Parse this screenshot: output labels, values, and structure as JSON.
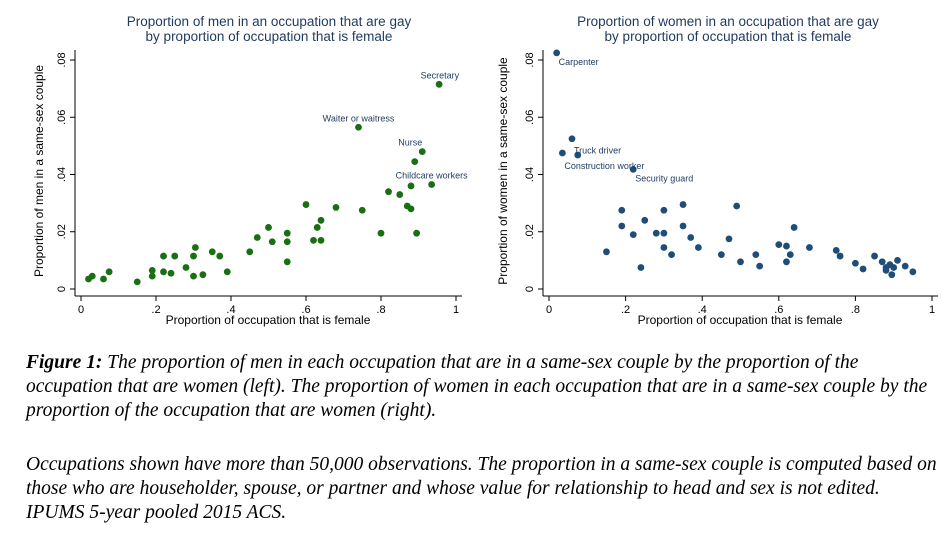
{
  "chart_data": [
    {
      "type": "scatter",
      "title": "Proportion of men in an occupation that are gay",
      "subtitle": "by proportion of occupation that is female",
      "xlabel": "Proportion of occupation that is female",
      "ylabel": "Proportion of men in a same-sex couple",
      "xlim": [
        0,
        1
      ],
      "ylim": [
        0,
        0.08
      ],
      "xticks": [
        "0",
        ".2",
        ".4",
        ".6",
        ".8",
        "1"
      ],
      "yticks": [
        "0",
        ".02",
        ".04",
        ".06",
        ".08"
      ],
      "grid": false,
      "color": "#1a6e14",
      "points": [
        [
          0.02,
          0.0035
        ],
        [
          0.03,
          0.0045
        ],
        [
          0.06,
          0.0035
        ],
        [
          0.075,
          0.006
        ],
        [
          0.15,
          0.0025
        ],
        [
          0.19,
          0.0065
        ],
        [
          0.19,
          0.0045
        ],
        [
          0.22,
          0.006
        ],
        [
          0.22,
          0.0115
        ],
        [
          0.24,
          0.0055
        ],
        [
          0.25,
          0.0115
        ],
        [
          0.28,
          0.0075
        ],
        [
          0.3,
          0.0115
        ],
        [
          0.3,
          0.0045
        ],
        [
          0.305,
          0.0145
        ],
        [
          0.325,
          0.005
        ],
        [
          0.35,
          0.013
        ],
        [
          0.37,
          0.0115
        ],
        [
          0.39,
          0.006
        ],
        [
          0.45,
          0.013
        ],
        [
          0.47,
          0.018
        ],
        [
          0.5,
          0.0215
        ],
        [
          0.51,
          0.0165
        ],
        [
          0.55,
          0.0195
        ],
        [
          0.55,
          0.0165
        ],
        [
          0.55,
          0.0095
        ],
        [
          0.6,
          0.0295
        ],
        [
          0.62,
          0.017
        ],
        [
          0.63,
          0.0215
        ],
        [
          0.64,
          0.017
        ],
        [
          0.64,
          0.024
        ],
        [
          0.68,
          0.0285
        ],
        [
          0.74,
          0.0565
        ],
        [
          0.75,
          0.0275
        ],
        [
          0.8,
          0.0195
        ],
        [
          0.82,
          0.034
        ],
        [
          0.85,
          0.033
        ],
        [
          0.87,
          0.029
        ],
        [
          0.88,
          0.028
        ],
        [
          0.88,
          0.036
        ],
        [
          0.89,
          0.0445
        ],
        [
          0.895,
          0.0195
        ],
        [
          0.91,
          0.048
        ],
        [
          0.935,
          0.0365
        ],
        [
          0.955,
          0.0715
        ]
      ],
      "annotations": [
        {
          "text": "Secretary",
          "x": 0.955,
          "y": 0.0715
        },
        {
          "text": "Waiter or waitress",
          "x": 0.74,
          "y": 0.0565
        },
        {
          "text": "Nurse",
          "x": 0.91,
          "y": 0.048
        },
        {
          "text": "Childcare workers",
          "x": 0.935,
          "y": 0.0365
        }
      ]
    },
    {
      "type": "scatter",
      "title": "Proportion of women in an occupation that are gay",
      "subtitle": "by proportion of occupation that is female",
      "xlabel": "Proportion of occupation that is female",
      "ylabel": "Proportion of women in a same-sex couple",
      "xlim": [
        0,
        1
      ],
      "ylim": [
        0,
        0.08
      ],
      "xticks": [
        "0",
        ".2",
        ".4",
        ".6",
        ".8",
        "1"
      ],
      "yticks": [
        "0",
        ".02",
        ".04",
        ".06",
        ".08"
      ],
      "grid": false,
      "color": "#1e4d78",
      "points": [
        [
          0.02,
          0.0825
        ],
        [
          0.06,
          0.0525
        ],
        [
          0.035,
          0.0475
        ],
        [
          0.075,
          0.0468
        ],
        [
          0.22,
          0.0418
        ],
        [
          0.15,
          0.013
        ],
        [
          0.19,
          0.0275
        ],
        [
          0.19,
          0.022
        ],
        [
          0.22,
          0.019
        ],
        [
          0.24,
          0.0075
        ],
        [
          0.25,
          0.024
        ],
        [
          0.28,
          0.0195
        ],
        [
          0.3,
          0.0275
        ],
        [
          0.3,
          0.0145
        ],
        [
          0.3,
          0.0195
        ],
        [
          0.32,
          0.012
        ],
        [
          0.35,
          0.0295
        ],
        [
          0.35,
          0.022
        ],
        [
          0.37,
          0.018
        ],
        [
          0.39,
          0.0145
        ],
        [
          0.45,
          0.012
        ],
        [
          0.47,
          0.0175
        ],
        [
          0.49,
          0.029
        ],
        [
          0.5,
          0.0095
        ],
        [
          0.54,
          0.012
        ],
        [
          0.55,
          0.008
        ],
        [
          0.6,
          0.0155
        ],
        [
          0.62,
          0.015
        ],
        [
          0.62,
          0.0095
        ],
        [
          0.63,
          0.012
        ],
        [
          0.64,
          0.0215
        ],
        [
          0.68,
          0.0145
        ],
        [
          0.75,
          0.0135
        ],
        [
          0.76,
          0.0115
        ],
        [
          0.8,
          0.009
        ],
        [
          0.82,
          0.007
        ],
        [
          0.85,
          0.0115
        ],
        [
          0.87,
          0.0095
        ],
        [
          0.88,
          0.0075
        ],
        [
          0.88,
          0.0065
        ],
        [
          0.89,
          0.0085
        ],
        [
          0.895,
          0.005
        ],
        [
          0.9,
          0.0075
        ],
        [
          0.91,
          0.01
        ],
        [
          0.93,
          0.008
        ],
        [
          0.95,
          0.006
        ]
      ],
      "annotations": [
        {
          "text": "Carpenter",
          "x": 0.02,
          "y": 0.0825
        },
        {
          "text": "Truck driver",
          "x": 0.06,
          "y": 0.0525
        },
        {
          "text": "Construction worker",
          "x": 0.035,
          "y": 0.0475
        },
        {
          "text": "Security guard",
          "x": 0.22,
          "y": 0.0418
        }
      ]
    }
  ],
  "caption": {
    "label": "Figure 1:",
    "text": " The proportion of men in each occupation that are in a same-sex couple by the proportion of the occupation that are women (left). The proportion of women in each occupation that are in a same-sex couple by the proportion of the occupation that are women (right).",
    "note": "Occupations shown have more than 50,000 observations. The proportion in a same-sex couple is computed based on those who are householder, spouse, or partner and whose value for relationship to head and sex is not edited. IPUMS 5-year pooled 2015 ACS."
  }
}
